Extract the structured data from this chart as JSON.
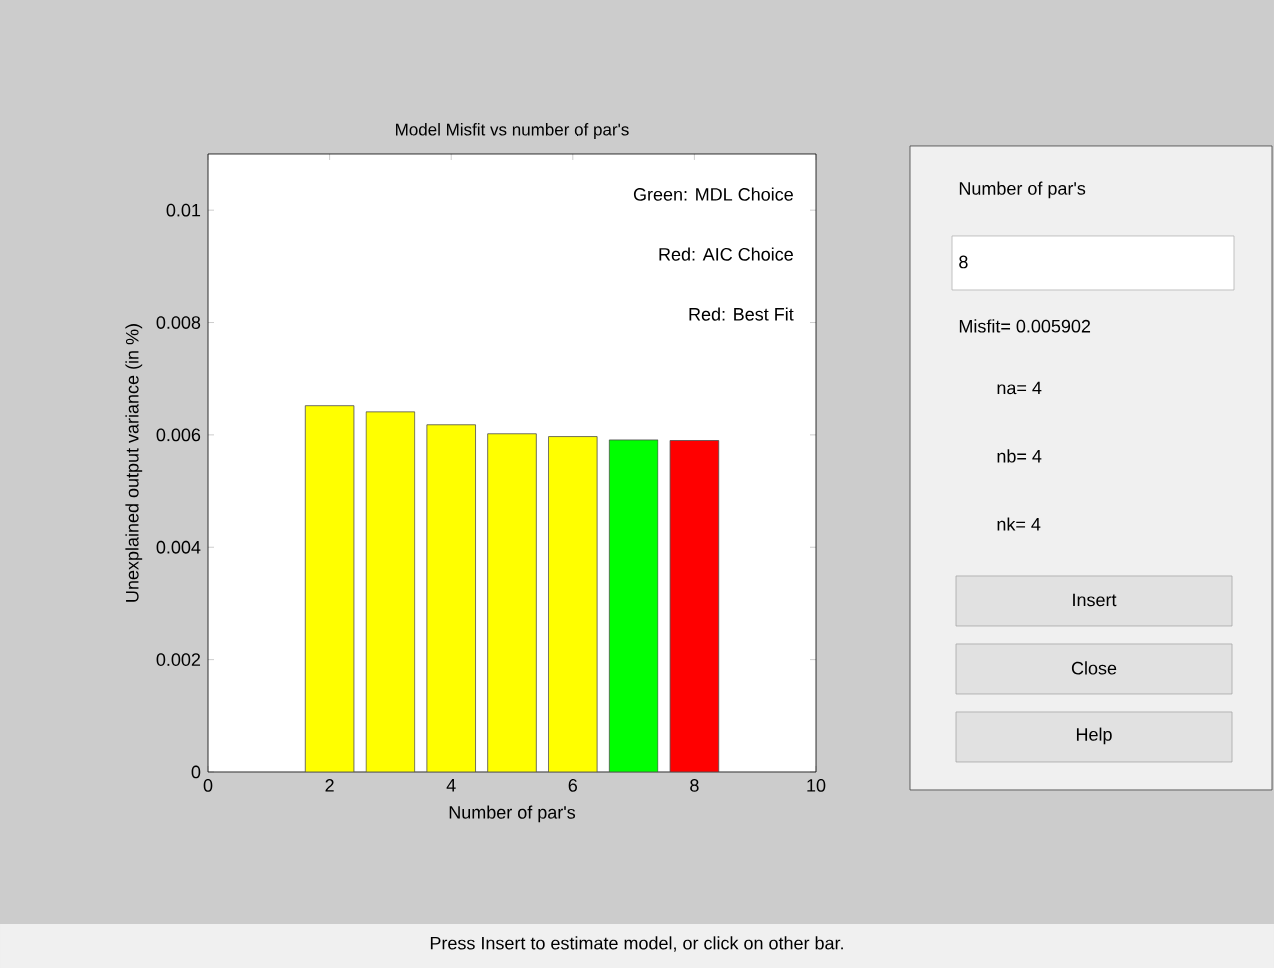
{
  "chart_data": [
    {
      "type": "bar",
      "title": "Model Misfit vs number of par's",
      "xlabel": "Number of par's",
      "ylabel": "Unexplained output variance (in %)",
      "x": [
        2,
        3,
        4,
        5,
        6,
        7,
        8
      ],
      "values": [
        0.00652,
        0.00641,
        0.00618,
        0.00602,
        0.00597,
        0.00591,
        0.0059
      ],
      "colors": [
        "#ffff00",
        "#ffff00",
        "#ffff00",
        "#ffff00",
        "#ffff00",
        "#00ff00",
        "#ff0000"
      ],
      "xlim": [
        0,
        10
      ],
      "xticks": [
        0,
        2,
        4,
        6,
        8,
        10
      ],
      "ylim": [
        0,
        0.011
      ],
      "yticks": [
        0,
        0.002,
        0.004,
        0.006,
        0.008,
        0.01
      ],
      "grid": false,
      "annotations": [
        "Green: MDL Choice",
        "Red: AIC Choice",
        "Red: Best Fit",
        "Press Insert to estimate model, or click on other bar."
      ]
    },
    {
      "type": "other",
      "annotations": [
        "Number of par's",
        "8",
        "Misfit=  0.005902",
        "na=  4",
        "nb=  4",
        "nk=  4",
        "Insert",
        "Close",
        "Help"
      ]
    }
  ]
}
